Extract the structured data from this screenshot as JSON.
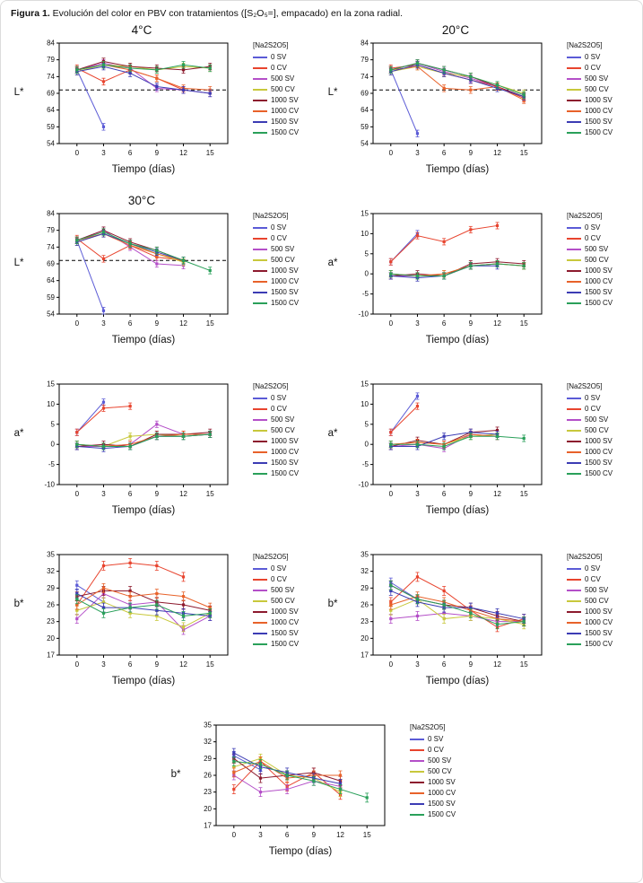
{
  "caption": {
    "label": "Figura 1.",
    "text": " Evolución del color en PBV con tratamientos ([S₂O₅=], empacado) en la zona radial."
  },
  "legend": {
    "title": "[Na2S2O5]",
    "position": "right",
    "entries": [
      {
        "label": "0 SV",
        "color": "#5b5bd6"
      },
      {
        "label": "0 CV",
        "color": "#e8442e"
      },
      {
        "label": "500 SV",
        "color": "#b44fc8"
      },
      {
        "label": "500 CV",
        "color": "#c8c83c"
      },
      {
        "label": "1000 SV",
        "color": "#8c1a2e"
      },
      {
        "label": "1000 CV",
        "color": "#e8622a"
      },
      {
        "label": "1500 SV",
        "color": "#3c3cb4"
      },
      {
        "label": "1500 CV",
        "color": "#2aa05a"
      }
    ]
  },
  "x_axis": {
    "label": "Tiempo (días)",
    "ticks": [
      0,
      3,
      6,
      9,
      12,
      15
    ]
  },
  "chart_data": [
    {
      "type": "line",
      "title": "4°C",
      "ylabel": "L*",
      "xlabel": "Tiempo (días)",
      "ylim": [
        54,
        84
      ],
      "yticks": [
        54,
        59,
        64,
        69,
        74,
        79,
        84
      ],
      "ref_line": 70,
      "err": 1.0,
      "x": [
        0,
        3,
        6,
        9,
        12,
        15
      ],
      "series": [
        {
          "name": "0 SV",
          "values": [
            76,
            59,
            null,
            null,
            null,
            null
          ]
        },
        {
          "name": "0 CV",
          "values": [
            76.5,
            72.5,
            76,
            73.5,
            70,
            null
          ]
        },
        {
          "name": "500 SV",
          "values": [
            76,
            78,
            76.5,
            70.5,
            70,
            69
          ]
        },
        {
          "name": "500 CV",
          "values": [
            75.5,
            77.5,
            77,
            76,
            77,
            76.5
          ]
        },
        {
          "name": "1000 SV",
          "values": [
            76,
            78.5,
            77,
            76.5,
            76,
            77
          ]
        },
        {
          "name": "1000 CV",
          "values": [
            76,
            77.5,
            76,
            73.5,
            70.5,
            70
          ]
        },
        {
          "name": "1500 SV",
          "values": [
            75.5,
            77,
            75,
            71,
            70,
            69
          ]
        },
        {
          "name": "1500 CV",
          "values": [
            76,
            77.5,
            76.5,
            76,
            77.5,
            76.5
          ]
        }
      ]
    },
    {
      "type": "line",
      "title": "20°C",
      "ylabel": "L*",
      "xlabel": "Tiempo (días)",
      "ylim": [
        54,
        84
      ],
      "yticks": [
        54,
        59,
        64,
        69,
        74,
        79,
        84
      ],
      "ref_line": 70,
      "err": 1.0,
      "x": [
        0,
        3,
        6,
        9,
        12,
        15
      ],
      "series": [
        {
          "name": "0 SV",
          "values": [
            76,
            57,
            null,
            null,
            null,
            null
          ]
        },
        {
          "name": "0 CV",
          "values": [
            76.5,
            77.5,
            75,
            73,
            71,
            67.5
          ]
        },
        {
          "name": "500 SV",
          "values": [
            76,
            78,
            75.5,
            73.5,
            71,
            68
          ]
        },
        {
          "name": "500 CV",
          "values": [
            75.5,
            77,
            75,
            74,
            71.5,
            69
          ]
        },
        {
          "name": "1000 SV",
          "values": [
            76,
            78,
            76,
            74,
            71,
            68
          ]
        },
        {
          "name": "1000 CV",
          "values": [
            76,
            77,
            70.5,
            70,
            71,
            67
          ]
        },
        {
          "name": "1500 SV",
          "values": [
            75.5,
            77.5,
            75,
            73,
            70.5,
            68
          ]
        },
        {
          "name": "1500 CV",
          "values": [
            76,
            78,
            76,
            74,
            71.5,
            68.5
          ]
        }
      ]
    },
    {
      "type": "line",
      "title": "30°C",
      "ylabel": "L*",
      "xlabel": "Tiempo (días)",
      "ylim": [
        54,
        84
      ],
      "yticks": [
        54,
        59,
        64,
        69,
        74,
        79,
        84
      ],
      "ref_line": 70,
      "err": 1.0,
      "x": [
        0,
        3,
        6,
        9,
        12,
        15
      ],
      "series": [
        {
          "name": "0 SV",
          "values": [
            76,
            55,
            null,
            null,
            null,
            null
          ]
        },
        {
          "name": "0 CV",
          "values": [
            76.5,
            70.5,
            74.5,
            71,
            70,
            null
          ]
        },
        {
          "name": "500 SV",
          "values": [
            76,
            79,
            74,
            69,
            68.5,
            null
          ]
        },
        {
          "name": "500 CV",
          "values": [
            75.5,
            78,
            75,
            72,
            69.5,
            null
          ]
        },
        {
          "name": "1000 SV",
          "values": [
            76,
            79,
            75.5,
            73,
            70,
            null
          ]
        },
        {
          "name": "1000 CV",
          "values": [
            76,
            78,
            74.5,
            72,
            70,
            null
          ]
        },
        {
          "name": "1500 SV",
          "values": [
            75.5,
            78,
            75,
            72.5,
            70,
            null
          ]
        },
        {
          "name": "1500 CV",
          "values": [
            76,
            78.5,
            75,
            73,
            70,
            67
          ]
        }
      ]
    },
    {
      "type": "line",
      "ylabel": "a*",
      "xlabel": "Tiempo (días)",
      "ylim": [
        -10,
        15
      ],
      "yticks": [
        -10,
        -5,
        0,
        5,
        10,
        15
      ],
      "err": 0.8,
      "x": [
        0,
        3,
        6,
        9,
        12,
        15
      ],
      "series": [
        {
          "name": "0 SV",
          "values": [
            3,
            10,
            null,
            null,
            null,
            null
          ]
        },
        {
          "name": "0 CV",
          "values": [
            3,
            9.5,
            8,
            11,
            12,
            null
          ]
        },
        {
          "name": "500 SV",
          "values": [
            -0.5,
            -0.5,
            -0.5,
            2,
            2.5,
            null
          ]
        },
        {
          "name": "500 CV",
          "values": [
            0,
            -0.5,
            0,
            2,
            2.5,
            2
          ]
        },
        {
          "name": "1000 SV",
          "values": [
            -0.5,
            0,
            -0.5,
            2.5,
            3,
            2.5
          ]
        },
        {
          "name": "1000 CV",
          "values": [
            0,
            -0.5,
            0,
            2,
            2.5,
            2
          ]
        },
        {
          "name": "1500 SV",
          "values": [
            -0.5,
            -1,
            -0.5,
            2,
            2,
            null
          ]
        },
        {
          "name": "1500 CV",
          "values": [
            0,
            -0.5,
            -0.5,
            2,
            2.5,
            2
          ]
        }
      ]
    },
    {
      "type": "line",
      "ylabel": "a*",
      "xlabel": "Tiempo (días)",
      "ylim": [
        -10,
        15
      ],
      "yticks": [
        -10,
        -5,
        0,
        5,
        10,
        15
      ],
      "err": 0.8,
      "x": [
        0,
        3,
        6,
        9,
        12,
        15
      ],
      "series": [
        {
          "name": "0 SV",
          "values": [
            3,
            10.5,
            null,
            null,
            null,
            null
          ]
        },
        {
          "name": "0 CV",
          "values": [
            3,
            9,
            9.5,
            null,
            null,
            null
          ]
        },
        {
          "name": "500 SV",
          "values": [
            -0.5,
            -0.5,
            0,
            5,
            2.5,
            2.5
          ]
        },
        {
          "name": "500 CV",
          "values": [
            0,
            -0.5,
            2,
            2.5,
            2,
            2.5
          ]
        },
        {
          "name": "1000 SV",
          "values": [
            -0.5,
            0,
            -0.5,
            2.5,
            2.5,
            3
          ]
        },
        {
          "name": "1000 CV",
          "values": [
            0,
            -0.5,
            0,
            2,
            2.5,
            2.5
          ]
        },
        {
          "name": "1500 SV",
          "values": [
            -0.5,
            -1,
            -0.5,
            2,
            2,
            2.5
          ]
        },
        {
          "name": "1500 CV",
          "values": [
            0,
            -0.5,
            -0.5,
            2,
            2,
            2.5
          ]
        }
      ]
    },
    {
      "type": "line",
      "ylabel": "a*",
      "xlabel": "Tiempo (días)",
      "ylim": [
        -10,
        15
      ],
      "yticks": [
        -10,
        -5,
        0,
        5,
        10,
        15
      ],
      "err": 0.8,
      "x": [
        0,
        3,
        6,
        9,
        12,
        15
      ],
      "series": [
        {
          "name": "0 SV",
          "values": [
            3,
            12,
            null,
            null,
            null,
            null
          ]
        },
        {
          "name": "0 CV",
          "values": [
            3,
            9.5,
            null,
            null,
            null,
            null
          ]
        },
        {
          "name": "500 SV",
          "values": [
            -0.5,
            0,
            -1,
            2.5,
            2,
            null
          ]
        },
        {
          "name": "500 CV",
          "values": [
            0,
            0.5,
            0,
            2,
            2.5,
            null
          ]
        },
        {
          "name": "1000 SV",
          "values": [
            -0.5,
            1,
            0,
            3,
            3.5,
            null
          ]
        },
        {
          "name": "1000 CV",
          "values": [
            0,
            0.5,
            0,
            2.5,
            2,
            null
          ]
        },
        {
          "name": "1500 SV",
          "values": [
            -0.5,
            -0.5,
            2,
            3,
            2.5,
            null
          ]
        },
        {
          "name": "1500 CV",
          "values": [
            0,
            0,
            -0.5,
            2,
            2,
            1.5
          ]
        }
      ]
    },
    {
      "type": "line",
      "ylabel": "b*",
      "xlabel": "Tiempo (días)",
      "ylim": [
        17,
        35
      ],
      "yticks": [
        17,
        20,
        23,
        26,
        29,
        32,
        35
      ],
      "err": 0.8,
      "x": [
        0,
        3,
        6,
        9,
        12,
        15
      ],
      "series": [
        {
          "name": "0 SV",
          "values": [
            29.5,
            26.5,
            null,
            null,
            null,
            null
          ]
        },
        {
          "name": "0 CV",
          "values": [
            26,
            33,
            33.5,
            33,
            31,
            null
          ]
        },
        {
          "name": "500 SV",
          "values": [
            23.5,
            28,
            26,
            26.5,
            21.5,
            24
          ]
        },
        {
          "name": "500 CV",
          "values": [
            25,
            26.5,
            24.5,
            24,
            22,
            24.5
          ]
        },
        {
          "name": "1000 SV",
          "values": [
            27.5,
            28.5,
            28.5,
            26.5,
            26,
            25
          ]
        },
        {
          "name": "1000 CV",
          "values": [
            26,
            29,
            27.5,
            28,
            27.5,
            25.5
          ]
        },
        {
          "name": "1500 SV",
          "values": [
            28,
            25.5,
            25.5,
            25,
            24.5,
            24
          ]
        },
        {
          "name": "1500 CV",
          "values": [
            27,
            24.5,
            25.5,
            26,
            24,
            24.5
          ]
        }
      ]
    },
    {
      "type": "line",
      "ylabel": "b*",
      "xlabel": "Tiempo (días)",
      "ylim": [
        17,
        35
      ],
      "yticks": [
        17,
        20,
        23,
        26,
        29,
        32,
        35
      ],
      "err": 0.8,
      "x": [
        0,
        3,
        6,
        9,
        12,
        15
      ],
      "series": [
        {
          "name": "0 SV",
          "values": [
            30,
            27,
            null,
            null,
            null,
            null
          ]
        },
        {
          "name": "0 CV",
          "values": [
            26.5,
            31,
            28.5,
            25,
            22,
            23.5
          ]
        },
        {
          "name": "500 SV",
          "values": [
            23.5,
            24,
            24.5,
            24,
            23,
            23
          ]
        },
        {
          "name": "500 CV",
          "values": [
            25,
            27,
            23.5,
            24,
            23.5,
            22.5
          ]
        },
        {
          "name": "1000 SV",
          "values": [
            29.5,
            27,
            26,
            25.5,
            24,
            23
          ]
        },
        {
          "name": "1000 CV",
          "values": [
            26,
            27.5,
            26.5,
            25,
            23.5,
            23
          ]
        },
        {
          "name": "1500 SV",
          "values": [
            28.5,
            26.5,
            25.5,
            25.5,
            24.5,
            23.5
          ]
        },
        {
          "name": "1500 CV",
          "values": [
            29.5,
            27,
            26,
            24.5,
            22.5,
            23
          ]
        }
      ]
    },
    {
      "type": "line",
      "ylabel": "b*",
      "xlabel": "Tiempo (días)",
      "ylim": [
        17,
        35
      ],
      "yticks": [
        17,
        20,
        23,
        26,
        29,
        32,
        35
      ],
      "err": 0.8,
      "x": [
        0,
        3,
        6,
        9,
        12,
        15
      ],
      "series": [
        {
          "name": "0 SV",
          "values": [
            29.5,
            27,
            null,
            null,
            null,
            null
          ]
        },
        {
          "name": "0 CV",
          "values": [
            23.5,
            28.5,
            24,
            26.5,
            22.5,
            null
          ]
        },
        {
          "name": "500 SV",
          "values": [
            26,
            23,
            23.5,
            25,
            24,
            null
          ]
        },
        {
          "name": "500 CV",
          "values": [
            27.5,
            29,
            26,
            25.5,
            23,
            null
          ]
        },
        {
          "name": "1000 SV",
          "values": [
            29,
            25.5,
            26,
            26.5,
            25,
            null
          ]
        },
        {
          "name": "1000 CV",
          "values": [
            26.5,
            28.5,
            25.5,
            26,
            26,
            null
          ]
        },
        {
          "name": "1500 SV",
          "values": [
            30,
            27.5,
            26.5,
            25.5,
            24.5,
            null
          ]
        },
        {
          "name": "1500 CV",
          "values": [
            28.5,
            28,
            26,
            25,
            23.5,
            22
          ]
        }
      ]
    }
  ]
}
